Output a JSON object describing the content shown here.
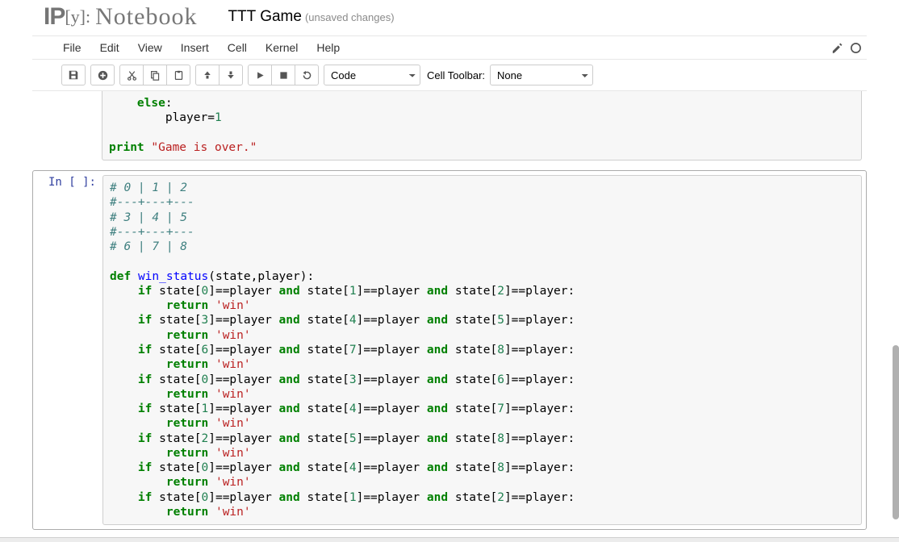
{
  "header": {
    "logo_ip": "IP",
    "logo_y": "[y]:",
    "logo_nb": "Notebook",
    "title": "TTT Game",
    "unsaved": "(unsaved changes)"
  },
  "menu": {
    "items": [
      "File",
      "Edit",
      "View",
      "Insert",
      "Cell",
      "Kernel",
      "Help"
    ]
  },
  "toolbar": {
    "cell_type_label": "Code",
    "cell_toolbar_label": "Cell Toolbar:",
    "cell_toolbar_value": "None",
    "icons": {
      "save": "save-icon",
      "add": "plus-icon",
      "cut": "cut-icon",
      "copy": "copy-icon",
      "paste": "paste-icon",
      "up": "arrow-up-icon",
      "down": "arrow-down-icon",
      "run": "play-icon",
      "stop": "stop-icon",
      "restart": "refresh-icon",
      "edit": "pencil-icon",
      "power": "power-icon"
    }
  },
  "colors": {
    "keyword": "#008000",
    "comment": "#408080",
    "string": "#ba2121",
    "number": "#208050",
    "defname": "#0000ff",
    "prompt": "#303F9F",
    "cell_bg": "#f7f7f7",
    "cell_border": "#cfcfcf",
    "selected_border": "#ababab"
  },
  "cells": [
    {
      "prompt": "",
      "code_html": "    <span class='kw'>else</span>:\n        player=<span class='num'>1</span>\n\n<span class='kw'>print</span> <span class='str'>\"Game is over.\"</span>"
    },
    {
      "prompt": "In [ ]:",
      "code_html": "<span class='com'># 0 | 1 | 2</span>\n<span class='com'>#---+---+---</span>\n<span class='com'># 3 | 4 | 5</span>\n<span class='com'>#---+---+---</span>\n<span class='com'># 6 | 7 | 8</span>\n\n<span class='kw'>def</span> <span class='def'>win_status</span>(state,player):\n    <span class='kw'>if</span> state[<span class='num'>0</span>]==player <span class='kw'>and</span> state[<span class='num'>1</span>]==player <span class='kw'>and</span> state[<span class='num'>2</span>]==player:\n        <span class='kw'>return</span> <span class='str'>'win'</span>\n    <span class='kw'>if</span> state[<span class='num'>3</span>]==player <span class='kw'>and</span> state[<span class='num'>4</span>]==player <span class='kw'>and</span> state[<span class='num'>5</span>]==player:\n        <span class='kw'>return</span> <span class='str'>'win'</span>\n    <span class='kw'>if</span> state[<span class='num'>6</span>]==player <span class='kw'>and</span> state[<span class='num'>7</span>]==player <span class='kw'>and</span> state[<span class='num'>8</span>]==player:\n        <span class='kw'>return</span> <span class='str'>'win'</span>\n    <span class='kw'>if</span> state[<span class='num'>0</span>]==player <span class='kw'>and</span> state[<span class='num'>3</span>]==player <span class='kw'>and</span> state[<span class='num'>6</span>]==player:\n        <span class='kw'>return</span> <span class='str'>'win'</span>\n    <span class='kw'>if</span> state[<span class='num'>1</span>]==player <span class='kw'>and</span> state[<span class='num'>4</span>]==player <span class='kw'>and</span> state[<span class='num'>7</span>]==player:\n        <span class='kw'>return</span> <span class='str'>'win'</span>\n    <span class='kw'>if</span> state[<span class='num'>2</span>]==player <span class='kw'>and</span> state[<span class='num'>5</span>]==player <span class='kw'>and</span> state[<span class='num'>8</span>]==player:\n        <span class='kw'>return</span> <span class='str'>'win'</span>\n    <span class='kw'>if</span> state[<span class='num'>0</span>]==player <span class='kw'>and</span> state[<span class='num'>4</span>]==player <span class='kw'>and</span> state[<span class='num'>8</span>]==player:\n        <span class='kw'>return</span> <span class='str'>'win'</span>\n    <span class='kw'>if</span> state[<span class='num'>0</span>]==player <span class='kw'>and</span> state[<span class='num'>1</span>]==player <span class='kw'>and</span> state[<span class='num'>2</span>]==player:\n        <span class='kw'>return</span> <span class='str'>'win'</span>"
    }
  ]
}
